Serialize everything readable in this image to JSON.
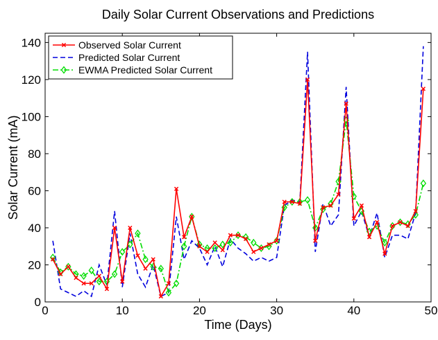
{
  "chart_data": {
    "type": "line",
    "title": "Daily Solar Current Observations and Predictions",
    "xlabel": "Time (Days)",
    "ylabel": "Solar Current (mA)",
    "xlim": [
      0,
      50
    ],
    "ylim": [
      0,
      145
    ],
    "xticks": [
      0,
      10,
      20,
      30,
      40,
      50
    ],
    "yticks": [
      0,
      20,
      40,
      60,
      80,
      100,
      120,
      140
    ],
    "grid": false,
    "legend_position": "top-left",
    "x": [
      1,
      2,
      3,
      4,
      5,
      6,
      7,
      8,
      9,
      10,
      11,
      12,
      13,
      14,
      15,
      16,
      17,
      18,
      19,
      20,
      21,
      22,
      23,
      24,
      25,
      26,
      27,
      28,
      29,
      30,
      31,
      32,
      33,
      34,
      35,
      36,
      37,
      38,
      39,
      40,
      41,
      42,
      43,
      44,
      45,
      46,
      47,
      48,
      49
    ],
    "series": [
      {
        "name": "Observed Solar Current",
        "color": "#ff0000",
        "style": "solid",
        "marker": "x",
        "values": [
          23,
          15,
          19,
          13,
          10,
          10,
          14,
          7,
          40,
          11,
          40,
          25,
          18,
          23,
          3,
          10,
          61,
          35,
          46,
          30,
          27,
          32,
          28,
          36,
          36,
          34,
          27,
          29,
          31,
          33,
          54,
          54,
          53,
          120,
          33,
          51,
          52,
          58,
          107,
          45,
          52,
          35,
          43,
          26,
          41,
          43,
          41,
          49,
          115
        ]
      },
      {
        "name": "Predicted Solar Current",
        "color": "#0000dd",
        "style": "dashed",
        "marker": "none",
        "values": [
          33,
          7,
          5,
          3,
          6,
          3,
          20,
          9,
          49,
          8,
          37,
          15,
          8,
          20,
          3,
          5,
          46,
          23,
          33,
          29,
          20,
          30,
          19,
          34,
          29,
          26,
          22,
          24,
          22,
          24,
          52,
          55,
          54,
          135,
          27,
          53,
          41,
          47,
          116,
          41,
          49,
          35,
          48,
          24,
          36,
          36,
          34,
          48,
          138
        ]
      },
      {
        "name": "EWMA Predicted Solar Current",
        "color": "#00dd00",
        "style": "dashdot",
        "marker": "diamond",
        "values": [
          24,
          16,
          19,
          15,
          14,
          17,
          11,
          11,
          15,
          27,
          31,
          37,
          23,
          19,
          18,
          5,
          10,
          30,
          46,
          31,
          29,
          29,
          31,
          32,
          36,
          35,
          32,
          29,
          30,
          33,
          51,
          54,
          54,
          55,
          40,
          50,
          53,
          65,
          98,
          57,
          49,
          38,
          41,
          32,
          41,
          43,
          42,
          47,
          64
        ]
      }
    ]
  }
}
